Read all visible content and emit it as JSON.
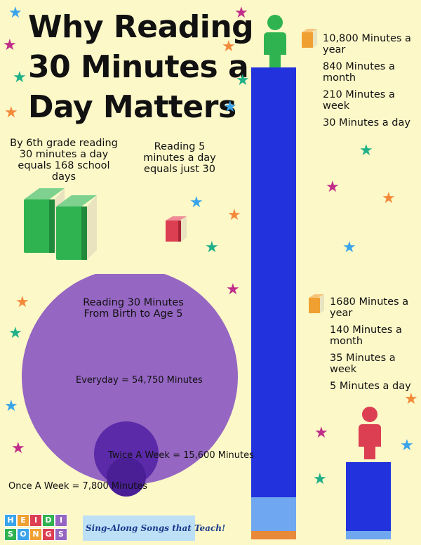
{
  "title": {
    "line1": "Why Reading",
    "line2": "30 Minutes a",
    "line3": "Day Matters"
  },
  "notes": {
    "sixth_grade": "By 6th grade reading 30 minutes a day equals 168 school days",
    "five_minutes": "Reading 5 minutes a day equals just 30"
  },
  "stats_30": [
    "10,800 Minutes a year",
    "840 Minutes a month",
    "210 Minutes a week",
    "30 Minutes a day"
  ],
  "stats_5": [
    "1680 Minutes a year",
    "140 Minutes a month",
    "35 Minutes a week",
    "5 Minutes a day"
  ],
  "circles": {
    "heading": "Reading 30 Minutes From Birth to Age 5",
    "everyday": "Everyday = 54,750 Minutes",
    "twice_week": "Twice A Week = 15,600 Minutes",
    "once_week": "Once A Week = 7,800 Minutes"
  },
  "bars": {
    "thirty_minute_reader": 10800,
    "five_minute_reader": 1680
  },
  "footer": {
    "logo_letters_top": [
      "H",
      "E",
      "I",
      "D",
      "I"
    ],
    "logo_letters_bottom": [
      "S",
      "O",
      "N",
      "G",
      "S"
    ],
    "tagline": "Sing-Along Songs that Teach!"
  },
  "colors": {
    "background": "#fdf8c8",
    "bar": "#2233dd",
    "bar_light": "#6fa8f0",
    "bar_orange": "#e8893a",
    "circle": "#9566c2",
    "circle_mid": "#5a2aa8",
    "circle_small": "#4a1f96",
    "book_green": "#2fb350",
    "book_red": "#dc3e52",
    "book_orange": "#f0a030",
    "person_green": "#2fb350",
    "person_red": "#dc3e52",
    "star_pink": "#c02c8a",
    "star_orange": "#f28a3a",
    "star_teal": "#1fb088",
    "star_blue": "#3aa4ea"
  },
  "icons": {
    "big_books": "green-books-icon",
    "small_book": "red-book-icon",
    "stat_book": "orange-book-icon",
    "person": "person-icon",
    "star": "star-icon"
  }
}
